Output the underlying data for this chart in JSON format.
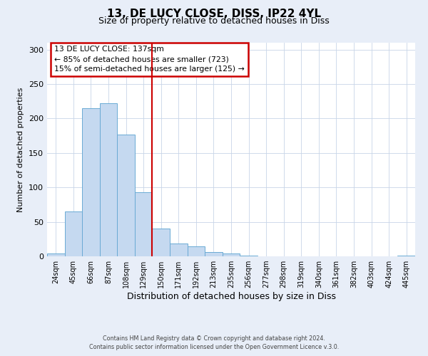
{
  "title": "13, DE LUCY CLOSE, DISS, IP22 4YL",
  "subtitle": "Size of property relative to detached houses in Diss",
  "xlabel": "Distribution of detached houses by size in Diss",
  "ylabel": "Number of detached properties",
  "bar_labels": [
    "24sqm",
    "45sqm",
    "66sqm",
    "87sqm",
    "108sqm",
    "129sqm",
    "150sqm",
    "171sqm",
    "192sqm",
    "213sqm",
    "235sqm",
    "256sqm",
    "277sqm",
    "298sqm",
    "319sqm",
    "340sqm",
    "361sqm",
    "382sqm",
    "403sqm",
    "424sqm",
    "445sqm"
  ],
  "bar_values": [
    4,
    65,
    215,
    222,
    177,
    93,
    40,
    19,
    14,
    6,
    4,
    1,
    0,
    0,
    0,
    0,
    0,
    0,
    0,
    0,
    1
  ],
  "bar_color": "#c5d9f0",
  "bar_edge_color": "#6aaad4",
  "vline_color": "#cc0000",
  "vline_x": 5.5,
  "annotation_line1": "13 DE LUCY CLOSE: 137sqm",
  "annotation_line2": "← 85% of detached houses are smaller (723)",
  "annotation_line3": "15% of semi-detached houses are larger (125) →",
  "annotation_box_edge_color": "#cc0000",
  "ylim": [
    0,
    310
  ],
  "yticks": [
    0,
    50,
    100,
    150,
    200,
    250,
    300
  ],
  "footer1": "Contains HM Land Registry data © Crown copyright and database right 2024.",
  "footer2": "Contains public sector information licensed under the Open Government Licence v.3.0.",
  "bg_color": "#e8eef8",
  "plot_bg_color": "#ffffff",
  "grid_color": "#c8d4e8"
}
